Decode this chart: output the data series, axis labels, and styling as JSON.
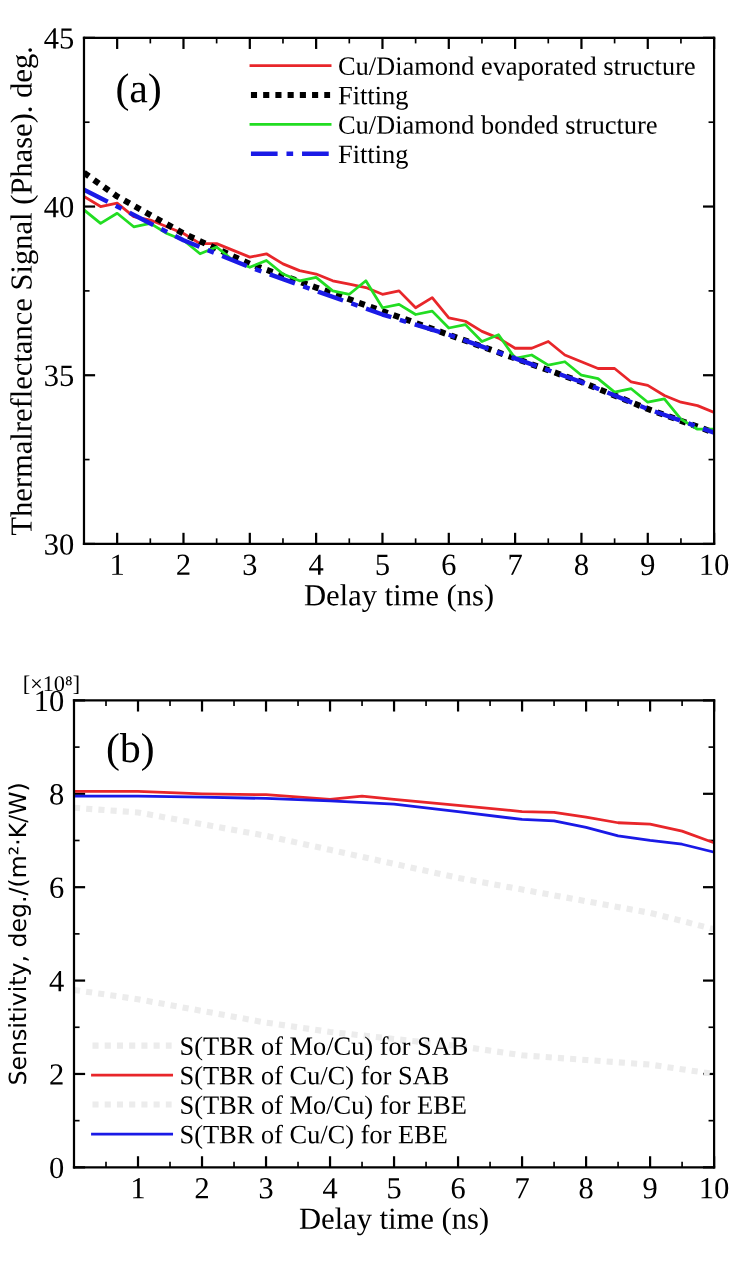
{
  "chart_data": [
    {
      "type": "line",
      "xlabel": "Delay time (ns)",
      "ylabel": "Thermalreflectance Signal (Phase). deg.",
      "annotations": [
        "(a)"
      ],
      "xlim": [
        0.5,
        10
      ],
      "ylim": [
        30,
        45
      ],
      "xticks": [
        1,
        2,
        3,
        4,
        5,
        6,
        7,
        8,
        9,
        10
      ],
      "yticks": [
        30,
        35,
        40,
        45
      ],
      "legend": "top right",
      "grid": false,
      "series": [
        {
          "name": "Cu/Diamond evaporated structure",
          "color": "#e8262a",
          "line_style": "solid",
          "x": [
            0.5,
            0.75,
            1.0,
            1.25,
            1.5,
            1.75,
            2.0,
            2.25,
            2.5,
            2.75,
            3.0,
            3.25,
            3.5,
            3.75,
            4.0,
            4.25,
            4.5,
            4.75,
            5.0,
            5.25,
            5.5,
            5.75,
            6.0,
            6.25,
            6.5,
            6.75,
            7.0,
            7.25,
            7.5,
            7.75,
            8.0,
            8.25,
            8.5,
            8.75,
            9.0,
            9.25,
            9.5,
            9.75,
            10.0
          ],
          "values": [
            40.3,
            40.0,
            40.1,
            39.7,
            39.6,
            39.4,
            39.2,
            38.9,
            38.9,
            38.7,
            38.5,
            38.6,
            38.3,
            38.1,
            38.0,
            37.8,
            37.7,
            37.6,
            37.4,
            37.5,
            37.0,
            37.3,
            36.7,
            36.6,
            36.3,
            36.1,
            35.8,
            35.8,
            36.0,
            35.6,
            35.4,
            35.2,
            35.2,
            34.8,
            34.7,
            34.4,
            34.2,
            34.1,
            33.9
          ]
        },
        {
          "name": "Fitting",
          "color": "#000000",
          "line_style": "dotted",
          "x": [
            0.5,
            1,
            2,
            3,
            4,
            5,
            6,
            7,
            8,
            9,
            10
          ],
          "values": [
            41.0,
            40.3,
            39.2,
            38.3,
            37.6,
            36.9,
            36.2,
            35.5,
            34.8,
            34.0,
            33.3
          ]
        },
        {
          "name": "Cu/Diamond bonded structure",
          "color": "#22dd22",
          "line_style": "solid",
          "x": [
            0.5,
            0.75,
            1.0,
            1.25,
            1.5,
            1.75,
            2.0,
            2.25,
            2.5,
            2.75,
            3.0,
            3.25,
            3.5,
            3.75,
            4.0,
            4.25,
            4.5,
            4.75,
            5.0,
            5.25,
            5.5,
            5.75,
            6.0,
            6.25,
            6.5,
            6.75,
            7.0,
            7.25,
            7.5,
            7.75,
            8.0,
            8.25,
            8.5,
            8.75,
            9.0,
            9.25,
            9.5,
            9.75,
            10.0
          ],
          "values": [
            39.9,
            39.5,
            39.8,
            39.4,
            39.5,
            39.2,
            39.0,
            38.6,
            38.8,
            38.4,
            38.2,
            38.4,
            38.0,
            37.8,
            37.9,
            37.5,
            37.4,
            37.8,
            37.0,
            37.1,
            36.8,
            36.9,
            36.4,
            36.5,
            36.0,
            36.2,
            35.5,
            35.6,
            35.3,
            35.4,
            35.0,
            34.9,
            34.5,
            34.6,
            34.2,
            34.3,
            33.7,
            33.4,
            33.4
          ]
        },
        {
          "name": "Fitting",
          "color": "#1a1ae6",
          "line_style": "dashdot",
          "x": [
            0.5,
            1,
            2,
            3,
            4,
            5,
            6,
            7,
            8,
            9,
            10
          ],
          "values": [
            40.5,
            40.0,
            39.0,
            38.2,
            37.5,
            36.8,
            36.2,
            35.5,
            34.8,
            34.0,
            33.3
          ]
        }
      ]
    },
    {
      "type": "line",
      "xlabel": "Delay time (ns)",
      "ylabel": "Sensitivity, deg./(m²·K/W)",
      "annotations": [
        "(b)",
        "[×10⁸]"
      ],
      "xlim": [
        0,
        10
      ],
      "ylim": [
        0,
        10
      ],
      "xticks": [
        1,
        2,
        3,
        4,
        5,
        6,
        7,
        8,
        9,
        10
      ],
      "yticks": [
        0,
        2,
        4,
        6,
        8,
        10
      ],
      "legend": "bottom left",
      "grid": false,
      "series": [
        {
          "name": "S(TBR of Mo/Cu) for SAB",
          "color": "#ececec",
          "line_style": "dotted",
          "x": [
            0,
            1,
            2,
            3,
            4,
            5,
            6,
            7,
            8,
            9,
            10
          ],
          "values": [
            7.7,
            7.6,
            7.35,
            7.1,
            6.8,
            6.5,
            6.2,
            5.95,
            5.7,
            5.45,
            5.1
          ]
        },
        {
          "name": "S(TBR of Cu/C) for SAB",
          "color": "#e8262a",
          "line_style": "solid",
          "x": [
            0,
            1,
            2,
            3,
            4,
            4.5,
            5,
            6,
            7,
            7.5,
            8,
            8.5,
            9,
            9.5,
            10
          ],
          "values": [
            8.05,
            8.05,
            8.0,
            7.98,
            7.88,
            7.95,
            7.88,
            7.75,
            7.62,
            7.6,
            7.5,
            7.38,
            7.35,
            7.2,
            6.95
          ]
        },
        {
          "name": "S(TBR of Mo/Cu) for EBE",
          "color": "#ececec",
          "line_style": "dotted",
          "x": [
            0,
            1,
            2,
            3,
            4,
            5,
            6,
            7,
            8,
            9,
            10
          ],
          "values": [
            3.8,
            3.6,
            3.35,
            3.1,
            2.9,
            2.75,
            2.6,
            2.4,
            2.3,
            2.2,
            2.0
          ]
        },
        {
          "name": "S(TBR of Cu/C) for EBE",
          "color": "#1a1ae6",
          "line_style": "solid",
          "x": [
            0,
            1,
            2,
            3,
            4,
            5,
            6,
            7,
            7.5,
            8,
            8.5,
            9,
            9.5,
            10
          ],
          "values": [
            7.95,
            7.95,
            7.93,
            7.9,
            7.85,
            7.78,
            7.62,
            7.45,
            7.42,
            7.28,
            7.1,
            7.0,
            6.92,
            6.75
          ]
        }
      ]
    }
  ]
}
